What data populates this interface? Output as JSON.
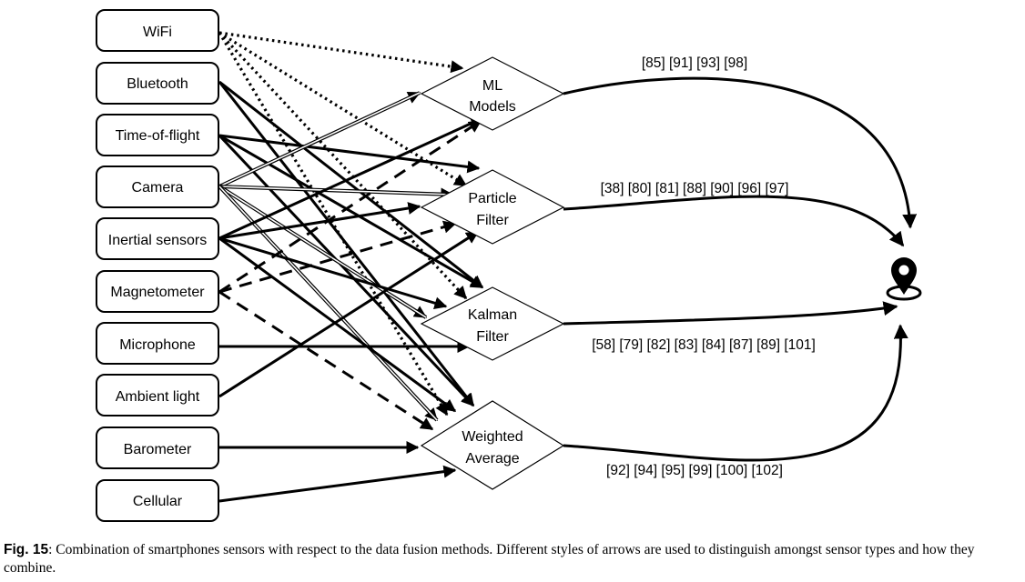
{
  "sensors": [
    {
      "id": "wifi",
      "label": "WiFi"
    },
    {
      "id": "bluetooth",
      "label": "Bluetooth"
    },
    {
      "id": "tof",
      "label": "Time-of-flight"
    },
    {
      "id": "camera",
      "label": "Camera"
    },
    {
      "id": "inertial",
      "label": "Inertial sensors"
    },
    {
      "id": "magnetometer",
      "label": "Magnetometer"
    },
    {
      "id": "microphone",
      "label": "Microphone"
    },
    {
      "id": "ambient",
      "label": "Ambient light"
    },
    {
      "id": "barometer",
      "label": "Barometer"
    },
    {
      "id": "cellular",
      "label": "Cellular"
    }
  ],
  "methods": [
    {
      "id": "ml",
      "lines": [
        "ML",
        "Models"
      ],
      "refs": "[85] [91] [93] [98]"
    },
    {
      "id": "pf",
      "lines": [
        "Particle",
        "Filter"
      ],
      "refs": "[38] [80] [81] [88] [90] [96] [97]"
    },
    {
      "id": "kf",
      "lines": [
        "Kalman",
        "Filter"
      ],
      "refs": "[58] [79] [82] [83] [84] [87] [89] [101]"
    },
    {
      "id": "wa",
      "lines": [
        "Weighted",
        "Average"
      ],
      "refs": "[92] [94] [95] [99] [100] [102]"
    }
  ],
  "output_icon": "location-pin-icon",
  "connections": [
    {
      "from": "wifi",
      "to": "ml",
      "style": "dotted"
    },
    {
      "from": "wifi",
      "to": "pf",
      "style": "dotted"
    },
    {
      "from": "wifi",
      "to": "kf",
      "style": "dotted"
    },
    {
      "from": "wifi",
      "to": "wa",
      "style": "dotted"
    },
    {
      "from": "bluetooth",
      "to": "kf",
      "style": "solid"
    },
    {
      "from": "bluetooth",
      "to": "wa",
      "style": "solid"
    },
    {
      "from": "tof",
      "to": "pf",
      "style": "solid"
    },
    {
      "from": "tof",
      "to": "kf",
      "style": "solid"
    },
    {
      "from": "tof",
      "to": "wa",
      "style": "solid"
    },
    {
      "from": "camera",
      "to": "ml",
      "style": "double"
    },
    {
      "from": "camera",
      "to": "pf",
      "style": "double"
    },
    {
      "from": "camera",
      "to": "kf",
      "style": "double"
    },
    {
      "from": "camera",
      "to": "wa",
      "style": "double"
    },
    {
      "from": "inertial",
      "to": "ml",
      "style": "solid"
    },
    {
      "from": "inertial",
      "to": "pf",
      "style": "solid"
    },
    {
      "from": "inertial",
      "to": "kf",
      "style": "solid"
    },
    {
      "from": "inertial",
      "to": "wa",
      "style": "solid"
    },
    {
      "from": "magnetometer",
      "to": "ml",
      "style": "dashed"
    },
    {
      "from": "magnetometer",
      "to": "pf",
      "style": "dashed"
    },
    {
      "from": "magnetometer",
      "to": "wa",
      "style": "dashed"
    },
    {
      "from": "microphone",
      "to": "kf",
      "style": "solid"
    },
    {
      "from": "ambient",
      "to": "pf",
      "style": "solid"
    },
    {
      "from": "barometer",
      "to": "wa",
      "style": "solid"
    },
    {
      "from": "cellular",
      "to": "wa",
      "style": "solid"
    }
  ],
  "caption": {
    "label": "Fig. 15",
    "text": ": Combination of smartphones sensors with respect to the data fusion methods. Different styles of arrows are used to distinguish amongst sensor types and how they combine."
  }
}
